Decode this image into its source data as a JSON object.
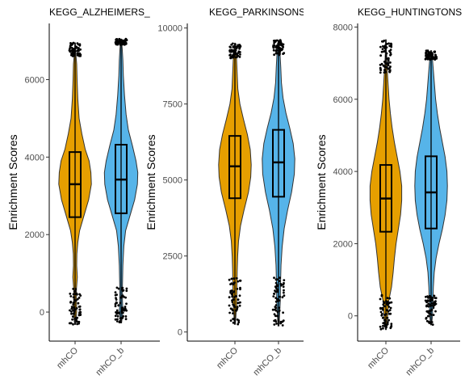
{
  "chart_data": [
    {
      "type": "violin",
      "title": "KEGG_ALZHEIMERS_",
      "ylabel": "Enrichment Scores",
      "categories": [
        "mhCO",
        "mhCO_b"
      ],
      "ylim": [
        -750,
        7450
      ],
      "yticks": [
        0,
        2000,
        4000,
        6000
      ],
      "colors": [
        "#E69F00",
        "#56B4E9"
      ],
      "groups": [
        {
          "name": "mhCO",
          "min": -320,
          "q1": 2450,
          "median": 3300,
          "q3": 4130,
          "max": 6950,
          "whisker_low": 0,
          "whisker_high": 6600,
          "density": [
            [
              -320,
              0.02
            ],
            [
              0,
              0.07
            ],
            [
              300,
              0.06
            ],
            [
              600,
              0.06
            ],
            [
              900,
              0.1
            ],
            [
              1200,
              0.07
            ],
            [
              1500,
              0.08
            ],
            [
              1800,
              0.12
            ],
            [
              2100,
              0.2
            ],
            [
              2500,
              0.4
            ],
            [
              2900,
              0.6
            ],
            [
              3300,
              0.72
            ],
            [
              3600,
              0.7
            ],
            [
              3900,
              0.62
            ],
            [
              4200,
              0.45
            ],
            [
              4600,
              0.3
            ],
            [
              5000,
              0.18
            ],
            [
              5500,
              0.12
            ],
            [
              6000,
              0.09
            ],
            [
              6400,
              0.07
            ],
            [
              6700,
              0.03
            ],
            [
              6950,
              0.01
            ]
          ]
        },
        {
          "name": "mhCO_b",
          "min": -280,
          "q1": 2550,
          "median": 3420,
          "q3": 4320,
          "max": 7050,
          "whisker_low": 0,
          "whisker_high": 6900,
          "density": [
            [
              -280,
              0.02
            ],
            [
              0,
              0.08
            ],
            [
              300,
              0.06
            ],
            [
              700,
              0.06
            ],
            [
              1200,
              0.08
            ],
            [
              1700,
              0.12
            ],
            [
              2100,
              0.2
            ],
            [
              2500,
              0.4
            ],
            [
              2900,
              0.6
            ],
            [
              3300,
              0.72
            ],
            [
              3600,
              0.74
            ],
            [
              3900,
              0.66
            ],
            [
              4300,
              0.5
            ],
            [
              4700,
              0.32
            ],
            [
              5100,
              0.22
            ],
            [
              5600,
              0.15
            ],
            [
              6100,
              0.1
            ],
            [
              6500,
              0.08
            ],
            [
              6800,
              0.05
            ],
            [
              7050,
              0.01
            ]
          ]
        }
      ]
    },
    {
      "type": "violin",
      "title": "KEGG_PARKINSONS",
      "ylabel": "Enrichment Scores",
      "categories": [
        "mhCO",
        "mhCO_b"
      ],
      "ylim": [
        -300,
        10150
      ],
      "yticks": [
        0,
        2500,
        5000,
        7500,
        10000
      ],
      "colors": [
        "#E69F00",
        "#56B4E9"
      ],
      "groups": [
        {
          "name": "mhCO",
          "min": 250,
          "q1": 4400,
          "median": 5450,
          "q3": 6450,
          "max": 9500,
          "whisker_low": 900,
          "whisker_high": 9000,
          "density": [
            [
              250,
              0.02
            ],
            [
              600,
              0.05
            ],
            [
              900,
              0.08
            ],
            [
              1500,
              0.09
            ],
            [
              2000,
              0.1
            ],
            [
              2500,
              0.12
            ],
            [
              3000,
              0.16
            ],
            [
              3500,
              0.25
            ],
            [
              4000,
              0.4
            ],
            [
              4600,
              0.6
            ],
            [
              5100,
              0.7
            ],
            [
              5500,
              0.72
            ],
            [
              6000,
              0.68
            ],
            [
              6500,
              0.55
            ],
            [
              7000,
              0.38
            ],
            [
              7500,
              0.22
            ],
            [
              8000,
              0.13
            ],
            [
              8500,
              0.1
            ],
            [
              9000,
              0.07
            ],
            [
              9300,
              0.04
            ],
            [
              9500,
              0.01
            ]
          ]
        },
        {
          "name": "mhCO_b",
          "min": 200,
          "q1": 4450,
          "median": 5580,
          "q3": 6650,
          "max": 9600,
          "whisker_low": 900,
          "whisker_high": 9100,
          "density": [
            [
              200,
              0.02
            ],
            [
              600,
              0.05
            ],
            [
              1000,
              0.08
            ],
            [
              1600,
              0.09
            ],
            [
              2200,
              0.11
            ],
            [
              2800,
              0.16
            ],
            [
              3400,
              0.25
            ],
            [
              4000,
              0.4
            ],
            [
              4600,
              0.58
            ],
            [
              5200,
              0.7
            ],
            [
              5700,
              0.72
            ],
            [
              6200,
              0.65
            ],
            [
              6700,
              0.5
            ],
            [
              7200,
              0.33
            ],
            [
              7700,
              0.2
            ],
            [
              8200,
              0.13
            ],
            [
              8700,
              0.1
            ],
            [
              9100,
              0.07
            ],
            [
              9400,
              0.04
            ],
            [
              9600,
              0.01
            ]
          ]
        }
      ]
    },
    {
      "type": "violin",
      "title": "KEGG_HUNTINGTONS",
      "ylabel": "Enrichment Scores",
      "categories": [
        "mhCO",
        "mhCO_b"
      ],
      "ylim": [
        -700,
        8100
      ],
      "yticks": [
        0,
        2000,
        4000,
        6000,
        8000
      ],
      "colors": [
        "#E69F00",
        "#56B4E9"
      ],
      "groups": [
        {
          "name": "mhCO",
          "min": -380,
          "q1": 2330,
          "median": 3250,
          "q3": 4180,
          "max": 7650,
          "whisker_low": 0,
          "whisker_high": 6700,
          "density": [
            [
              -380,
              0.02
            ],
            [
              0,
              0.08
            ],
            [
              400,
              0.12
            ],
            [
              800,
              0.25
            ],
            [
              1200,
              0.32
            ],
            [
              1600,
              0.38
            ],
            [
              2000,
              0.45
            ],
            [
              2400,
              0.55
            ],
            [
              2800,
              0.65
            ],
            [
              3200,
              0.7
            ],
            [
              3600,
              0.7
            ],
            [
              4000,
              0.62
            ],
            [
              4400,
              0.5
            ],
            [
              4800,
              0.38
            ],
            [
              5200,
              0.28
            ],
            [
              5600,
              0.2
            ],
            [
              6000,
              0.14
            ],
            [
              6400,
              0.1
            ],
            [
              6800,
              0.06
            ],
            [
              7200,
              0.03
            ],
            [
              7650,
              0.01
            ]
          ]
        },
        {
          "name": "mhCO_b",
          "min": -250,
          "q1": 2420,
          "median": 3420,
          "q3": 4420,
          "max": 7350,
          "whisker_low": 0,
          "whisker_high": 7100,
          "density": [
            [
              -250,
              0.02
            ],
            [
              0,
              0.06
            ],
            [
              400,
              0.08
            ],
            [
              800,
              0.1
            ],
            [
              1200,
              0.14
            ],
            [
              1600,
              0.22
            ],
            [
              2000,
              0.35
            ],
            [
              2400,
              0.5
            ],
            [
              2800,
              0.62
            ],
            [
              3200,
              0.7
            ],
            [
              3600,
              0.72
            ],
            [
              4000,
              0.7
            ],
            [
              4400,
              0.62
            ],
            [
              4800,
              0.5
            ],
            [
              5200,
              0.38
            ],
            [
              5600,
              0.28
            ],
            [
              6000,
              0.2
            ],
            [
              6400,
              0.15
            ],
            [
              6800,
              0.1
            ],
            [
              7100,
              0.06
            ],
            [
              7350,
              0.01
            ]
          ]
        }
      ]
    }
  ]
}
